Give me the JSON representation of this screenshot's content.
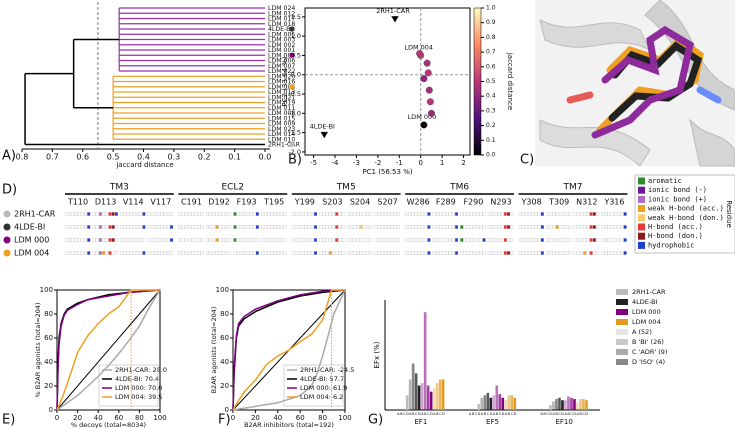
{
  "panel_labels": [
    "A)",
    "B)",
    "C)",
    "D)",
    "E)",
    "F)",
    "G)"
  ],
  "chart_data": [
    {
      "type": "dendrogram",
      "xlabel": "jaccard distance",
      "xlim": [
        0.8,
        0
      ],
      "xticks": [
        0.8,
        0.7,
        0.6,
        0.5,
        0.4,
        0.3,
        0.2,
        0.1,
        {
          "value": 0,
          "label": "0.0"
        }
      ],
      "leaves": [
        "LDM 024",
        "LDM 012",
        "LDM 017",
        "LDM 018",
        "4LDE-BI",
        "LDM 005",
        "LDM 003",
        "LDM 002",
        "LDM 001",
        "LDM 000",
        "LDM 006",
        "LDM 007",
        "LDM 022",
        "LDM 020",
        "LDM 016",
        "LDM 004",
        "LDM 013",
        "LDM 021",
        "LDM 019",
        "LDM 011",
        "LDM 008",
        "LDM 015",
        "LDM 009",
        "LDM 023",
        "LDM 014",
        "LDM 010",
        "2RH1-CAR"
      ],
      "leaf_markers": [
        null,
        null,
        null,
        null,
        "#333333",
        null,
        null,
        null,
        null,
        "#800080",
        null,
        null,
        null,
        null,
        null,
        "#f0a020",
        null,
        null,
        null,
        null,
        null,
        null,
        null,
        null,
        null,
        null,
        "#bbbbbb"
      ],
      "clusters": [
        {
          "color": "#9b30a8",
          "first": 0,
          "last": 12,
          "height": 0.48
        },
        {
          "color": "#f0a020",
          "first": 13,
          "last": 25,
          "height": 0.5
        }
      ],
      "join_height": 0.63,
      "root_height": 0.79,
      "threshold": 0.55
    },
    {
      "type": "scatter",
      "xlabel": "PC1 (56.53 %)",
      "ylabel": "PC2 (33.64 %)",
      "colorbar_label": "jaccard distance",
      "xlim": [
        -5.4,
        2.3
      ],
      "xticks": [
        -5,
        -4,
        -3,
        -2,
        -1,
        0,
        1,
        2
      ],
      "ylim": [
        -2.08,
        1.73
      ],
      "yticks": [
        {
          "value": -2,
          "label": "-2.0"
        },
        -1.5,
        {
          "value": -1,
          "label": "-1.0"
        },
        -0.5,
        {
          "value": 0,
          "label": "0.0"
        },
        0.5,
        {
          "value": 1,
          "label": "1.0"
        },
        1.5
      ],
      "clim": [
        0,
        1
      ],
      "cticks": [
        {
          "value": 0,
          "label": "0.0"
        },
        0.1,
        0.2,
        0.3,
        0.4,
        0.5,
        0.6,
        0.7,
        0.8,
        0.9,
        {
          "value": 1,
          "label": "1.0"
        }
      ],
      "colormap": [
        "#000004",
        "#51127c",
        "#b73779",
        "#fc8961",
        "#fcfdbf"
      ],
      "reference_lines": {
        "x": 0,
        "y": 0
      },
      "x": [
        -1.2,
        -4.5,
        0,
        0.15,
        -0.05,
        0.3,
        0.35,
        0.15,
        0.4,
        0.45,
        0.5
      ],
      "values": [
        1.45,
        -1.55,
        0.5,
        -1.3,
        0.55,
        0.3,
        0.05,
        -0.1,
        -0.4,
        -0.7,
        -1.0
      ],
      "color_values": [
        0,
        0,
        0.55,
        0,
        0.5,
        0.45,
        0.5,
        0.4,
        0.45,
        0.5,
        0.42
      ],
      "markers": [
        "triangle",
        "triangle",
        "circle",
        "circle",
        "circle",
        "circle",
        "circle",
        "circle",
        "circle",
        "circle",
        "circle"
      ],
      "point_labels": [
        "2RH1-CAR",
        "4LDE-BI",
        "LDM 004",
        "LDM 000",
        null,
        null,
        null,
        null,
        null,
        null,
        null
      ]
    },
    {
      "type": "fingerprint",
      "legend_title": "Residue",
      "groups": [
        {
          "name": "TM3",
          "residues": [
            "T110",
            "D113",
            "V114",
            "V117"
          ]
        },
        {
          "name": "ECL2",
          "residues": [
            "C191",
            "D192",
            "F193",
            "T195"
          ]
        },
        {
          "name": "TM5",
          "residues": [
            "Y199",
            "S203",
            "S204",
            "S207"
          ]
        },
        {
          "name": "TM6",
          "residues": [
            "W286",
            "F289",
            "F290",
            "N293"
          ]
        },
        {
          "name": "TM7",
          "residues": [
            "Y308",
            "T309",
            "N312",
            "Y316"
          ]
        }
      ],
      "types": [
        {
          "name": "aromatic",
          "color": "#2e8b2e"
        },
        {
          "name": "ionic bond (-)",
          "color": "#6a1b9a"
        },
        {
          "name": "ionic bond (+)",
          "color": "#b06ac0"
        },
        {
          "name": "weak H-bond (acc.)",
          "color": "#f0a020"
        },
        {
          "name": "weak H-bond (don.)",
          "color": "#f7c96a"
        },
        {
          "name": "H-bond (acc.)",
          "color": "#e53935"
        },
        {
          "name": "H-bond (don.)",
          "color": "#8b1a1a"
        },
        {
          "name": "hydrophobic",
          "color": "#1e3fd0"
        }
      ],
      "rows": [
        {
          "name": "2RH1-CAR",
          "color": "#bbbbbb",
          "bits": [
            [
              7
            ],
            [
              2,
              5,
              6,
              7
            ],
            [
              7
            ],
            [],
            [],
            [],
            [
              0,
              7
            ],
            [],
            [
              7
            ],
            [
              5
            ],
            [],
            [],
            [
              7
            ],
            [
              7
            ],
            [],
            [
              5,
              6
            ],
            [
              7
            ],
            [],
            [
              5,
              6
            ],
            [
              7
            ]
          ]
        },
        {
          "name": "4LDE-BI",
          "color": "#333333",
          "bits": [
            [
              7
            ],
            [
              2,
              5,
              6
            ],
            [
              7
            ],
            [
              7
            ],
            [],
            [
              3
            ],
            [
              0,
              7
            ],
            [],
            [
              7
            ],
            [
              5
            ],
            [
              4
            ],
            [],
            [
              7
            ],
            [
              7
            ],
            [
              0
            ],
            [
              5,
              6
            ],
            [
              7
            ],
            [
              3
            ],
            [
              5,
              6
            ],
            [
              7
            ]
          ]
        },
        {
          "name": "LDM 000",
          "color": "#800080",
          "bits": [
            [
              7
            ],
            [
              2,
              5,
              6
            ],
            [],
            [
              7
            ],
            [],
            [
              3
            ],
            [
              0
            ],
            [],
            [
              7
            ],
            [
              5
            ],
            [],
            [],
            [
              7
            ],
            [
              7
            ],
            [
              0,
              7
            ],
            [
              5
            ],
            [
              7
            ],
            [],
            [
              5,
              6
            ],
            [
              7
            ]
          ]
        },
        {
          "name": "LDM 004",
          "color": "#f0a020",
          "bits": [
            [
              7
            ],
            [
              2,
              3,
              5
            ],
            [
              7
            ],
            [],
            [],
            [],
            [
              7
            ],
            [],
            [
              7
            ],
            [
              3
            ],
            [],
            [],
            [
              7
            ],
            [
              7
            ],
            [],
            [
              5,
              6
            ],
            [
              7
            ],
            [],
            [
              3,
              5
            ],
            [
              7
            ]
          ]
        }
      ]
    },
    {
      "type": "line",
      "xlabel": "% decoys (total=8034)",
      "ylabel": "% B2AR agonists (total=204)",
      "xlim": [
        0,
        100
      ],
      "xticks": [
        0,
        20,
        40,
        60,
        80,
        100
      ],
      "ylim": [
        0,
        100
      ],
      "yticks": [
        0,
        20,
        40,
        60,
        80,
        100
      ],
      "diagonal": true,
      "series": [
        {
          "name": "2RH1-CAR: 28.0",
          "color": "#aaaaaa",
          "x": [
            0,
            10,
            20,
            30,
            40,
            50,
            60,
            70,
            80,
            90,
            100
          ],
          "values": [
            0,
            6,
            12,
            20,
            28,
            37,
            47,
            58,
            70,
            86,
            100
          ]
        },
        {
          "name": "4LDE-BI: 70.4",
          "color": "#000000",
          "x": [
            0,
            1,
            2,
            4,
            7,
            10,
            20,
            30,
            50,
            70,
            100
          ],
          "values": [
            0,
            40,
            60,
            72,
            80,
            84,
            89,
            92,
            96,
            98,
            100
          ]
        },
        {
          "name": "LDM 000: 70.0",
          "color": "#800080",
          "x": [
            0,
            1,
            2,
            4,
            7,
            10,
            20,
            30,
            50,
            70,
            100
          ],
          "values": [
            0,
            35,
            55,
            70,
            79,
            83,
            88,
            92,
            95,
            98,
            100
          ]
        },
        {
          "name": "LDM 004: 39.5",
          "color": "#f0a020",
          "x": [
            0,
            5,
            10,
            15,
            20,
            30,
            40,
            50,
            60,
            72,
            100
          ],
          "values": [
            0,
            10,
            22,
            35,
            48,
            62,
            72,
            80,
            86,
            100,
            100
          ],
          "cutoff": 72
        }
      ]
    },
    {
      "type": "line",
      "xlabel": "B2AR inhibitors (total=192)",
      "ylabel": "B2AR agonists (total=204)",
      "xlim": [
        0,
        100
      ],
      "xticks": [
        0,
        20,
        40,
        60,
        80,
        100
      ],
      "ylim": [
        0,
        100
      ],
      "yticks": [
        0,
        20,
        40,
        60,
        80,
        100
      ],
      "diagonal": true,
      "series": [
        {
          "name": "2RH1-CAR: -24.5",
          "color": "#aaaaaa",
          "x": [
            0,
            20,
            40,
            50,
            60,
            70,
            75,
            80,
            85,
            90,
            100
          ],
          "values": [
            0,
            3,
            6,
            9,
            12,
            20,
            30,
            45,
            62,
            80,
            100
          ]
        },
        {
          "name": "4LDE-BI: 57.7",
          "color": "#000000",
          "x": [
            0,
            1,
            3,
            5,
            10,
            20,
            40,
            60,
            80,
            100
          ],
          "values": [
            0,
            30,
            60,
            70,
            76,
            82,
            90,
            95,
            98,
            100
          ]
        },
        {
          "name": "LDM 000: 61.9",
          "color": "#800080",
          "x": [
            0,
            1,
            3,
            5,
            10,
            20,
            40,
            60,
            80,
            100
          ],
          "values": [
            0,
            35,
            62,
            72,
            78,
            84,
            91,
            96,
            99,
            100
          ]
        },
        {
          "name": "LDM 004: 6.2",
          "color": "#f0a020",
          "x": [
            0,
            5,
            10,
            20,
            30,
            40,
            50,
            60,
            70,
            80,
            88,
            100
          ],
          "values": [
            0,
            8,
            15,
            25,
            38,
            45,
            50,
            57,
            63,
            75,
            100,
            100
          ],
          "cutoff": 88
        }
      ]
    },
    {
      "type": "bar",
      "ylabel": "EFx (%)",
      "ylim": [
        0,
        90
      ],
      "categories": [
        "EF1",
        "EF5",
        "EF10"
      ],
      "subsets": [
        {
          "name": "A (52)",
          "letter": "A",
          "color": "#e6e6e6",
          "opacity": 0.35
        },
        {
          "name": "B 'BI' (26)",
          "letter": "B",
          "color": "#c8c8c8",
          "opacity": 0.55
        },
        {
          "name": "C 'ADR' (9)",
          "letter": "C",
          "color": "#aaaaaa",
          "opacity": 0.75
        },
        {
          "name": "D 'ISO' (4)",
          "letter": "D",
          "color": "#888888",
          "opacity": 1
        }
      ],
      "series": [
        {
          "name": "2RH1-CAR",
          "color": "#bbbbbb",
          "values": [
            [
              0,
              0,
              0,
              12
            ],
            [
              0,
              0,
              0,
              5
            ],
            [
              0,
              0,
              0,
              4
            ]
          ]
        },
        {
          "name": "4LDE-BI",
          "color": "#222222",
          "values": [
            [
              25,
              38,
              30,
              20
            ],
            [
              10,
              12,
              14,
              10
            ],
            [
              7,
              9,
              10,
              8
            ]
          ]
        },
        {
          "name": "LDM 000",
          "color": "#800080",
          "values": [
            [
              22,
              80,
              20,
              15
            ],
            [
              12,
              20,
              13,
              10
            ],
            [
              8,
              11,
              10,
              9
            ]
          ]
        },
        {
          "name": "LDM 004",
          "color": "#e09a20",
          "values": [
            [
              18,
              22,
              25,
              25
            ],
            [
              8,
              12,
              12,
              10
            ],
            [
              6,
              9,
              9,
              8
            ]
          ]
        }
      ]
    }
  ]
}
